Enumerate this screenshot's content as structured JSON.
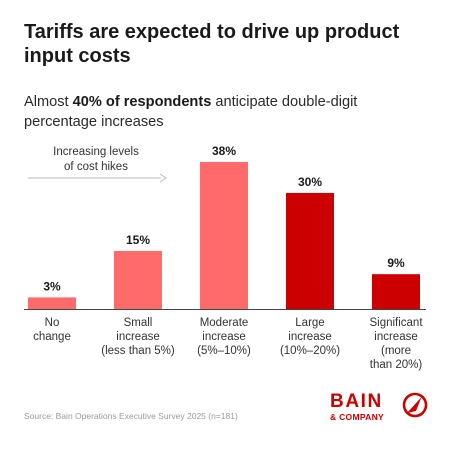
{
  "header": {
    "title": "Tariffs are expected to drive up product input costs",
    "subtitle_bold": "40% of respondents",
    "subtitle_pre": "Almost ",
    "subtitle_post": " anticipate double-digit percentage increases"
  },
  "chart_data": {
    "type": "bar",
    "annotation": [
      "Increasing levels",
      "of cost hikes"
    ],
    "categories": [
      [
        "No",
        "change"
      ],
      [
        "Small",
        "increase",
        "(less than 5%)"
      ],
      [
        "Moderate",
        "increase",
        "(5%–10%)"
      ],
      [
        "Large",
        "increase",
        "(10%–20%)"
      ],
      [
        "Significant",
        "increase",
        "(more",
        "than 20%)"
      ]
    ],
    "values": [
      3,
      15,
      38,
      30,
      9
    ],
    "value_labels": [
      "3%",
      "15%",
      "38%",
      "30%",
      "9%"
    ],
    "colors": [
      "#ff6b6b",
      "#ff6b6b",
      "#ff6b6b",
      "#cc0000",
      "#cc0000"
    ],
    "unit": "%",
    "ylim": [
      0,
      38
    ]
  },
  "footer": {
    "source": "Source: Bain Operations Executive Survey 2025 (n=181)",
    "logo_word": "BAIN",
    "logo_sub": "& COMPANY"
  },
  "icons": {
    "logo_mark": "bain-compass-icon",
    "arrow": "arrow-right-icon"
  }
}
